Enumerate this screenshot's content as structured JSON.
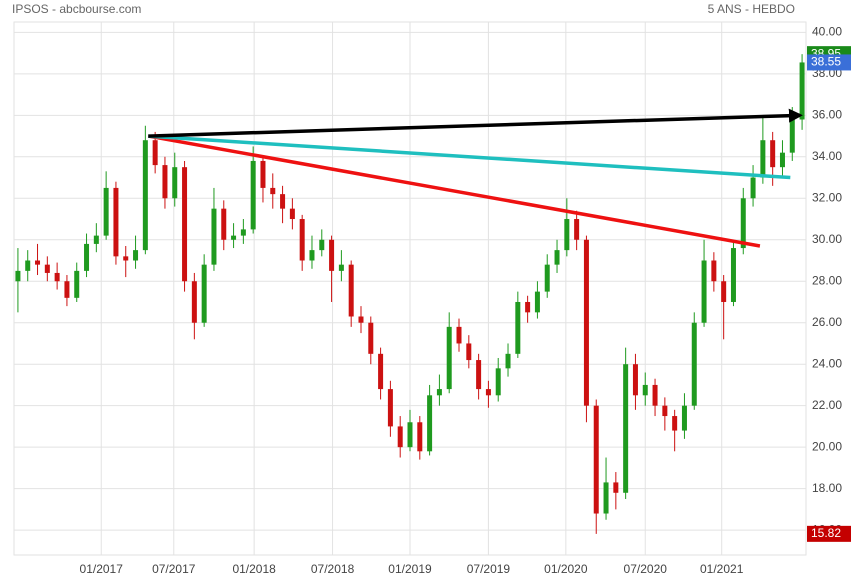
{
  "chart_data": {
    "type": "candlestick",
    "title": "IPSOS - abcbourse.com",
    "subtitle": "5 ANS - HEBDO",
    "up_color": "#1f9a1f",
    "down_color": "#cc1111",
    "grid": true,
    "xlim": [
      -0.4,
      80.4
    ],
    "ylim": [
      14.8,
      40.5
    ],
    "yticks": [
      {
        "value": 16,
        "label": "16.00"
      },
      {
        "value": 18,
        "label": "18.00"
      },
      {
        "value": 20,
        "label": "20.00"
      },
      {
        "value": 22,
        "label": "22.00"
      },
      {
        "value": 24,
        "label": "24.00"
      },
      {
        "value": 26,
        "label": "26.00"
      },
      {
        "value": 28,
        "label": "28.00"
      },
      {
        "value": 30,
        "label": "30.00"
      },
      {
        "value": 32,
        "label": "32.00"
      },
      {
        "value": 34,
        "label": "34.00"
      },
      {
        "value": 36,
        "label": "36.00"
      },
      {
        "value": 38,
        "label": "38.00"
      },
      {
        "value": 40,
        "label": "40.00"
      }
    ],
    "xticks": [
      {
        "value": 8.5,
        "label": "01/2017"
      },
      {
        "value": 15.9,
        "label": "07/2017"
      },
      {
        "value": 24.1,
        "label": "01/2018"
      },
      {
        "value": 32.1,
        "label": "07/2018"
      },
      {
        "value": 40,
        "label": "01/2019"
      },
      {
        "value": 48,
        "label": "07/2019"
      },
      {
        "value": 55.9,
        "label": "01/2020"
      },
      {
        "value": 64,
        "label": "07/2020"
      },
      {
        "value": 71.8,
        "label": "01/2021"
      }
    ],
    "open": [
      28.0,
      28.5,
      29.0,
      28.8,
      28.4,
      28.0,
      27.2,
      28.5,
      29.8,
      30.2,
      32.5,
      29.2,
      29.0,
      29.5,
      34.8,
      33.6,
      32.0,
      33.5,
      28.0,
      26.0,
      28.8,
      31.5,
      30.0,
      30.2,
      30.5,
      33.8,
      32.5,
      32.2,
      31.5,
      31.0,
      29.0,
      29.5,
      30.0,
      28.5,
      28.8,
      26.3,
      26.0,
      24.5,
      22.8,
      21.0,
      20.0,
      21.2,
      19.8,
      22.5,
      22.8,
      25.8,
      25.0,
      24.2,
      22.8,
      22.5,
      23.8,
      24.5,
      27.0,
      26.5,
      27.5,
      28.8,
      29.5,
      31.0,
      30.0,
      22.0,
      16.8,
      18.3,
      17.8,
      24.0,
      22.5,
      23.0,
      22.0,
      21.5,
      20.8,
      22.0,
      26.0,
      29.0,
      28.0,
      27.0,
      29.6,
      32.0,
      33.0,
      34.8,
      33.5,
      34.2,
      35.8
    ],
    "high": [
      29.6,
      29.5,
      29.8,
      29.2,
      28.9,
      28.3,
      28.9,
      30.3,
      30.8,
      33.3,
      32.8,
      29.7,
      30.2,
      35.5,
      35.2,
      34.0,
      34.2,
      33.8,
      28.4,
      29.3,
      32.5,
      31.9,
      30.8,
      31.0,
      34.5,
      34.0,
      33.2,
      32.6,
      32.0,
      31.2,
      30.2,
      30.5,
      30.2,
      29.5,
      29.0,
      26.8,
      26.3,
      24.8,
      23.2,
      21.5,
      21.8,
      21.5,
      23.0,
      23.5,
      26.5,
      26.2,
      25.4,
      24.5,
      23.2,
      24.3,
      25.0,
      27.5,
      27.3,
      28.0,
      29.3,
      30.0,
      32.0,
      31.4,
      30.2,
      22.3,
      19.5,
      18.8,
      24.8,
      24.5,
      23.6,
      23.3,
      22.4,
      21.8,
      22.6,
      26.5,
      30.0,
      29.4,
      28.3,
      30.0,
      32.5,
      33.6,
      35.9,
      35.2,
      34.8,
      36.4,
      38.95
    ],
    "low": [
      26.5,
      28.0,
      28.3,
      28.0,
      27.6,
      26.8,
      27.0,
      28.2,
      29.4,
      30.0,
      28.8,
      28.2,
      28.6,
      29.3,
      33.2,
      31.5,
      31.6,
      27.5,
      25.2,
      25.8,
      28.5,
      29.5,
      29.6,
      29.8,
      30.3,
      31.8,
      31.5,
      30.8,
      30.5,
      28.5,
      28.6,
      29.2,
      27.0,
      28.0,
      25.8,
      25.5,
      24.0,
      22.3,
      20.5,
      19.5,
      19.8,
      19.4,
      19.6,
      22.0,
      22.6,
      24.6,
      23.8,
      22.3,
      21.9,
      22.2,
      23.4,
      24.3,
      26.0,
      26.2,
      27.2,
      28.4,
      29.2,
      29.5,
      21.2,
      15.82,
      16.5,
      17.0,
      17.5,
      21.8,
      22.0,
      21.5,
      20.8,
      19.8,
      20.4,
      21.8,
      25.8,
      27.5,
      25.2,
      26.8,
      29.3,
      31.6,
      32.7,
      32.6,
      33.0,
      33.8,
      35.3
    ],
    "close": [
      28.5,
      29.0,
      28.8,
      28.4,
      28.0,
      27.2,
      28.5,
      29.8,
      30.2,
      32.5,
      29.2,
      29.0,
      29.5,
      34.8,
      33.6,
      32.0,
      33.5,
      28.0,
      26.0,
      28.8,
      31.5,
      30.0,
      30.2,
      30.5,
      33.8,
      32.5,
      32.2,
      31.5,
      31.0,
      29.0,
      29.5,
      30.0,
      28.5,
      28.8,
      26.3,
      26.0,
      24.5,
      22.8,
      21.0,
      20.0,
      21.2,
      19.8,
      22.5,
      22.8,
      25.8,
      25.0,
      24.2,
      22.8,
      22.5,
      23.8,
      24.5,
      27.0,
      26.5,
      27.5,
      28.8,
      29.5,
      31.0,
      30.0,
      22.0,
      16.8,
      18.3,
      17.8,
      24.0,
      22.5,
      23.0,
      22.0,
      21.5,
      20.8,
      22.0,
      26.0,
      29.0,
      28.0,
      27.0,
      29.6,
      32.0,
      33.0,
      34.8,
      33.5,
      34.2,
      35.8,
      38.55
    ],
    "trendlines": [
      {
        "color": "#ee1111",
        "from": [
          13.3,
          35.0
        ],
        "to": [
          75.7,
          29.7
        ]
      },
      {
        "color": "#1fbfbf",
        "from": [
          13.3,
          35.0
        ],
        "to": [
          78.8,
          33.0
        ]
      },
      {
        "color": "#000000",
        "from": [
          13.3,
          35.0
        ],
        "to": [
          79.8,
          36.0
        ],
        "arrow": true
      }
    ],
    "price_labels": [
      {
        "value": 38.95,
        "color": "#1a8a1a"
      },
      {
        "value": 38.55,
        "color": "#3a6fd8"
      },
      {
        "value": 15.82,
        "color": "#c40000"
      }
    ]
  }
}
